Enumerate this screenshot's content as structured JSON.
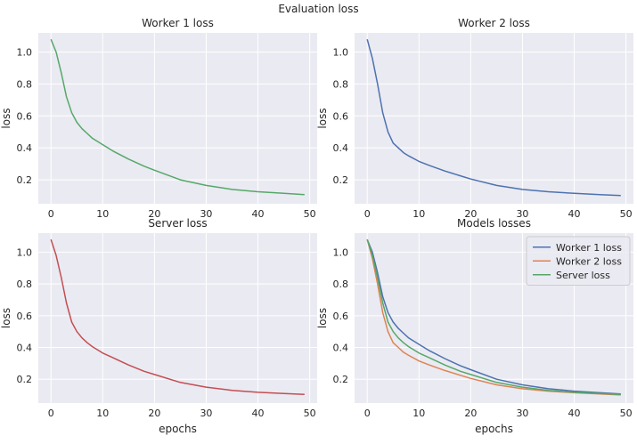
{
  "suptitle": "Evaluation loss",
  "colors": {
    "background": "#eaeaf2",
    "grid": "#ffffff",
    "worker1": "#4c72b0",
    "worker2": "#dd8452",
    "server": "#55a868",
    "server_panel": "#c44e52"
  },
  "chart_data": [
    {
      "type": "line",
      "title": "Worker 1 loss",
      "xlabel": "",
      "ylabel": "loss",
      "xlim": [
        -2.45,
        51.45
      ],
      "ylim": [
        0.05,
        1.12
      ],
      "xticks": [
        0,
        10,
        20,
        30,
        40,
        50
      ],
      "yticks": [
        0.2,
        0.4,
        0.6,
        0.8,
        1.0
      ],
      "ytick_labels": [
        "0.2",
        "0.4",
        "0.6",
        "0.8",
        "1.0"
      ],
      "grid": true,
      "series": [
        {
          "color": "#55a868",
          "x": [
            0,
            1,
            2,
            3,
            4,
            5,
            6,
            7,
            8,
            10,
            12,
            15,
            18,
            20,
            25,
            30,
            35,
            40,
            45,
            49
          ],
          "y": [
            1.08,
            1.0,
            0.87,
            0.72,
            0.62,
            0.56,
            0.52,
            0.49,
            0.46,
            0.42,
            0.38,
            0.33,
            0.285,
            0.26,
            0.2,
            0.165,
            0.14,
            0.125,
            0.115,
            0.107
          ]
        }
      ]
    },
    {
      "type": "line",
      "title": "Worker 2 loss",
      "xlabel": "",
      "ylabel": "loss",
      "xlim": [
        -2.45,
        51.45
      ],
      "ylim": [
        0.05,
        1.12
      ],
      "xticks": [
        0,
        10,
        20,
        30,
        40,
        50
      ],
      "yticks": [
        0.2,
        0.4,
        0.6,
        0.8,
        1.0
      ],
      "ytick_labels": [
        "0.2",
        "0.4",
        "0.6",
        "0.8",
        "1.0"
      ],
      "grid": true,
      "series": [
        {
          "color": "#4c72b0",
          "x": [
            0,
            1,
            2,
            3,
            4,
            5,
            6,
            7,
            8,
            10,
            12,
            15,
            18,
            20,
            25,
            30,
            35,
            40,
            45,
            49
          ],
          "y": [
            1.08,
            0.96,
            0.8,
            0.62,
            0.5,
            0.43,
            0.4,
            0.37,
            0.35,
            0.315,
            0.29,
            0.255,
            0.225,
            0.205,
            0.165,
            0.14,
            0.125,
            0.115,
            0.107,
            0.101
          ]
        }
      ]
    },
    {
      "type": "line",
      "title": "Server loss",
      "xlabel": "epochs",
      "ylabel": "loss",
      "xlim": [
        -2.45,
        51.45
      ],
      "ylim": [
        0.05,
        1.12
      ],
      "xticks": [
        0,
        10,
        20,
        30,
        40,
        50
      ],
      "yticks": [
        0.2,
        0.4,
        0.6,
        0.8,
        1.0
      ],
      "ytick_labels": [
        "0.2",
        "0.4",
        "0.6",
        "0.8",
        "1.0"
      ],
      "grid": true,
      "series": [
        {
          "color": "#c44e52",
          "x": [
            0,
            1,
            2,
            3,
            4,
            5,
            6,
            7,
            8,
            10,
            12,
            15,
            18,
            20,
            25,
            30,
            35,
            40,
            45,
            49
          ],
          "y": [
            1.08,
            0.98,
            0.84,
            0.68,
            0.56,
            0.5,
            0.46,
            0.43,
            0.405,
            0.365,
            0.335,
            0.29,
            0.25,
            0.23,
            0.18,
            0.15,
            0.13,
            0.118,
            0.11,
            0.105
          ]
        }
      ]
    },
    {
      "type": "line",
      "title": "Models losses",
      "xlabel": "epochs",
      "ylabel": "loss",
      "xlim": [
        -2.45,
        51.45
      ],
      "ylim": [
        0.05,
        1.12
      ],
      "xticks": [
        0,
        10,
        20,
        30,
        40,
        50
      ],
      "yticks": [
        0.2,
        0.4,
        0.6,
        0.8,
        1.0
      ],
      "ytick_labels": [
        "0.2",
        "0.4",
        "0.6",
        "0.8",
        "1.0"
      ],
      "grid": true,
      "legend": "top-right",
      "series": [
        {
          "name": "Worker 1 loss",
          "color": "#4c72b0",
          "x": [
            0,
            1,
            2,
            3,
            4,
            5,
            6,
            7,
            8,
            10,
            12,
            15,
            18,
            20,
            25,
            30,
            35,
            40,
            45,
            49
          ],
          "y": [
            1.08,
            1.0,
            0.87,
            0.72,
            0.62,
            0.56,
            0.52,
            0.49,
            0.46,
            0.42,
            0.38,
            0.33,
            0.285,
            0.26,
            0.2,
            0.165,
            0.14,
            0.125,
            0.115,
            0.107
          ]
        },
        {
          "name": "Worker 2 loss",
          "color": "#dd8452",
          "x": [
            0,
            1,
            2,
            3,
            4,
            5,
            6,
            7,
            8,
            10,
            12,
            15,
            18,
            20,
            25,
            30,
            35,
            40,
            45,
            49
          ],
          "y": [
            1.08,
            0.96,
            0.8,
            0.62,
            0.5,
            0.43,
            0.4,
            0.37,
            0.35,
            0.315,
            0.29,
            0.255,
            0.225,
            0.205,
            0.165,
            0.14,
            0.125,
            0.115,
            0.107,
            0.101
          ]
        },
        {
          "name": "Server loss",
          "color": "#55a868",
          "x": [
            0,
            1,
            2,
            3,
            4,
            5,
            6,
            7,
            8,
            10,
            12,
            15,
            18,
            20,
            25,
            30,
            35,
            40,
            45,
            49
          ],
          "y": [
            1.08,
            0.98,
            0.84,
            0.68,
            0.56,
            0.5,
            0.46,
            0.43,
            0.405,
            0.365,
            0.335,
            0.29,
            0.25,
            0.23,
            0.18,
            0.15,
            0.13,
            0.118,
            0.11,
            0.105
          ]
        }
      ]
    }
  ]
}
